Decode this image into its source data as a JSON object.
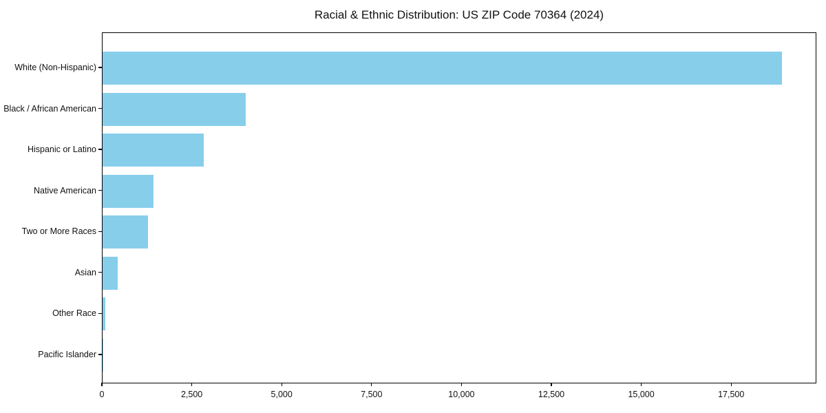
{
  "chart_data": {
    "type": "bar",
    "orientation": "horizontal",
    "title": "Racial & Ethnic Distribution: US ZIP Code 70364 (2024)",
    "categories": [
      "White (Non-Hispanic)",
      "Black / African American",
      "Hispanic or Latino",
      "Native American",
      "Two or More Races",
      "Asian",
      "Other Race",
      "Pacific Islander"
    ],
    "values": [
      18930,
      3980,
      2810,
      1410,
      1260,
      420,
      70,
      10
    ],
    "xlabel": "",
    "ylabel": "",
    "xlim": [
      0,
      19870
    ],
    "x_ticks": [
      0,
      2500,
      5000,
      7500,
      10000,
      12500,
      15000,
      17500
    ],
    "x_tick_labels": [
      "0",
      "2,500",
      "5,000",
      "7,500",
      "10,000",
      "12,500",
      "15,000",
      "17,500"
    ],
    "bar_color": "#87CEEB",
    "grid": false,
    "legend": null,
    "plot_border_color": "#000000",
    "background_color": "#ffffff"
  }
}
